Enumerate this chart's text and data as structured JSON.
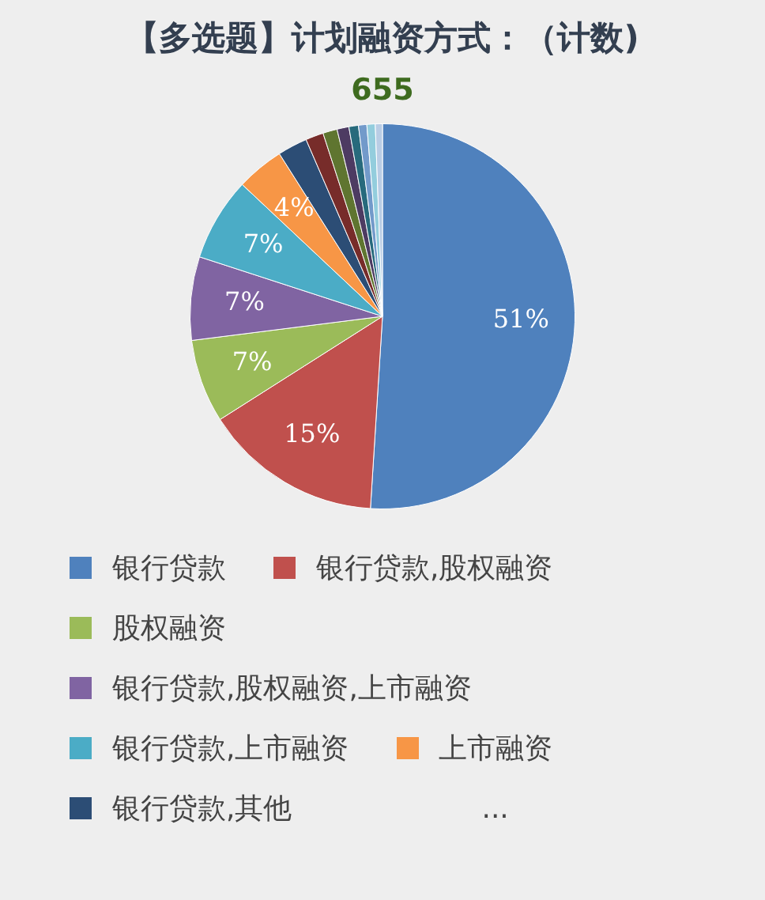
{
  "chart_data": {
    "type": "pie",
    "title": "【多选题】计划融资方式：（计数)",
    "subtitle": "655",
    "categories": [
      "银行贷款",
      "银行贷款,股权融资",
      "股权融资",
      "银行贷款,股权融资,上市融资",
      "银行贷款,上市融资",
      "上市融资",
      "银行贷款,其他",
      null,
      null,
      null,
      null,
      null,
      null,
      null
    ],
    "values": [
      51,
      15,
      7,
      7,
      7,
      4,
      2.5,
      1.5,
      1.2,
      1.0,
      0.8,
      0.7,
      0.7,
      0.6
    ],
    "colors": [
      "#4f81bd",
      "#c0504d",
      "#9bbb59",
      "#8064a2",
      "#4bacc6",
      "#f79646",
      "#2c4d75",
      "#772c2a",
      "#5f7530",
      "#4d3b62",
      "#276a7c",
      "#729aca",
      "#93cddd",
      "#b9cde5"
    ],
    "value_labels": [
      "51%",
      "15%",
      "7%",
      "7%",
      "7%",
      "4%",
      null,
      null,
      null,
      null,
      null,
      null,
      null,
      null
    ],
    "legend": "bottom",
    "annotations": [
      "..."
    ]
  }
}
